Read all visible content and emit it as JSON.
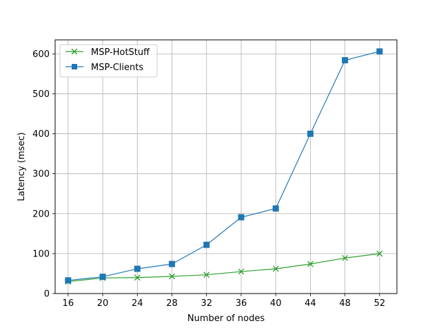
{
  "chart_data": {
    "type": "line",
    "title": "",
    "xlabel": "Number of nodes",
    "ylabel": "Latency (msec)",
    "x": [
      16,
      20,
      24,
      28,
      32,
      36,
      40,
      44,
      48,
      52
    ],
    "xticks": [
      "16",
      "20",
      "24",
      "28",
      "32",
      "36",
      "40",
      "44",
      "48",
      "52"
    ],
    "xlim": [
      14.5,
      54
    ],
    "ylim": [
      0,
      635
    ],
    "yticks": [
      0,
      100,
      200,
      300,
      400,
      500,
      600
    ],
    "grid": true,
    "legend_position": "upper-left",
    "series": [
      {
        "name": "MSP-HotStuff",
        "color": "#2ca02c",
        "marker": "x",
        "values": [
          30,
          39,
          40,
          43,
          47,
          55,
          62,
          74,
          89,
          100
        ]
      },
      {
        "name": "MSP-Clients",
        "color": "#1f77b4",
        "marker": "square",
        "values": [
          33,
          42,
          62,
          74,
          122,
          191,
          213,
          400,
          584,
          606
        ]
      }
    ]
  }
}
